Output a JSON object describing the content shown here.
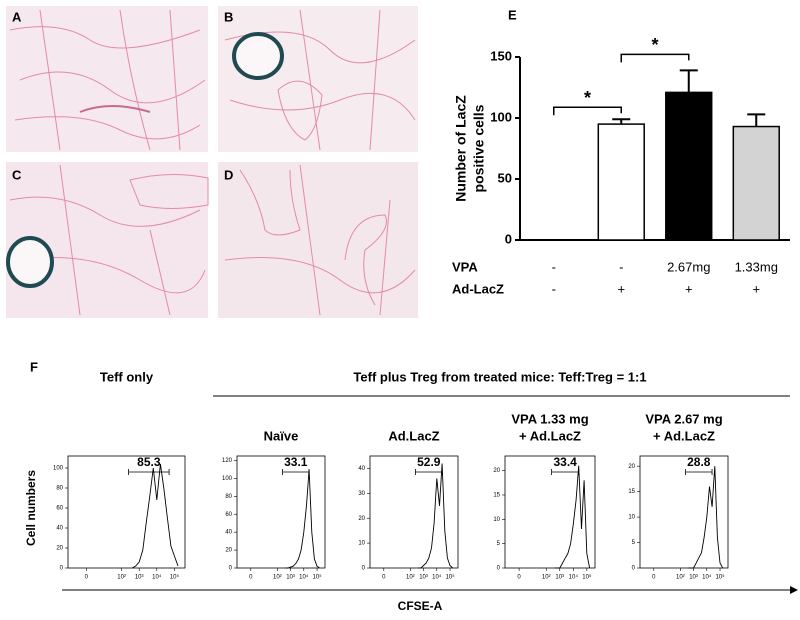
{
  "image_panels": [
    {
      "label": "A"
    },
    {
      "label": "B"
    },
    {
      "label": "C"
    },
    {
      "label": "D"
    }
  ],
  "panel_f": {
    "label": "F",
    "group_title": "Teff plus Treg from treated mice:  Teff:Treg = 1:1",
    "y_label": "Cell numbers",
    "x_label": "CFSE-A"
  },
  "chart_data": [
    {
      "type": "bar",
      "label": "E",
      "y_label": [
        "Number of LacZ",
        "positive cells"
      ],
      "categories": [
        null,
        null,
        null,
        null
      ],
      "values": [
        null,
        95,
        121,
        93
      ],
      "errors": [
        null,
        4,
        18,
        10
      ],
      "colors": [
        "#ffffff",
        "#ffffff",
        "#000000",
        "#d3d3d3"
      ],
      "ylim": [
        0,
        150
      ],
      "yticks": [
        0,
        50,
        100,
        150
      ],
      "condition_rows": [
        {
          "name": "VPA",
          "labels": [
            "-",
            "-",
            "2.67mg",
            "1.33mg"
          ]
        },
        {
          "name": "Ad-LacZ",
          "labels": [
            "-",
            "+",
            "+",
            "+"
          ]
        }
      ],
      "annotations": [
        {
          "text": "*",
          "between": [
            0,
            1
          ]
        },
        {
          "text": "*",
          "between": [
            1,
            2
          ]
        }
      ]
    },
    {
      "type": "histogram-line",
      "title": [
        "Teff only"
      ],
      "x": [
        400,
        630,
        1000,
        1600,
        2500,
        4000,
        6300,
        10000,
        16000,
        25000,
        40000,
        63000,
        100000,
        160000
      ],
      "values": [
        0,
        2,
        6,
        18,
        45,
        72,
        100,
        68,
        104,
        80,
        50,
        22,
        12,
        2
      ],
      "xscale": "symlog",
      "xlim": [
        -10,
        400000
      ],
      "xticks": [
        0,
        {
          "value": 100,
          "label": "10²"
        },
        {
          "value": 1000,
          "label": "10³"
        },
        {
          "value": 10000,
          "label": "10⁴"
        },
        {
          "value": 100000,
          "label": "10⁵"
        }
      ],
      "ylim": [
        0,
        112
      ],
      "yticks": [
        0,
        20,
        40,
        60,
        80,
        100
      ],
      "gate": {
        "range": [
          250,
          50000
        ],
        "value": 85.3
      }
    },
    {
      "type": "histogram-line",
      "title": [
        "Naïve"
      ],
      "x": [
        400,
        630,
        1000,
        1600,
        2500,
        4000,
        6300,
        10000,
        16000,
        25000,
        40000,
        63000,
        100000,
        160000
      ],
      "values": [
        0,
        0,
        1,
        2,
        5,
        10,
        20,
        40,
        70,
        110,
        40,
        10,
        2,
        0
      ],
      "xscale": "symlog",
      "xlim": [
        -10,
        400000
      ],
      "xticks": [
        0,
        {
          "value": 100,
          "label": "10²"
        },
        {
          "value": 1000,
          "label": "10³"
        },
        {
          "value": 10000,
          "label": "10⁴"
        },
        {
          "value": 100000,
          "label": "10⁵"
        }
      ],
      "ylim": [
        0,
        125
      ],
      "yticks": [
        0,
        20,
        40,
        60,
        80,
        100,
        120
      ],
      "gate": {
        "range": [
          250,
          25000
        ],
        "value": 33.1
      }
    },
    {
      "type": "histogram-line",
      "title": [
        "Ad.LacZ"
      ],
      "x": [
        400,
        630,
        1000,
        1600,
        2500,
        4000,
        6300,
        10000,
        16000,
        25000,
        40000,
        63000,
        100000,
        160000
      ],
      "values": [
        0,
        0,
        1,
        2,
        4,
        8,
        18,
        36,
        25,
        42,
        15,
        4,
        1,
        0
      ],
      "xscale": "symlog",
      "xlim": [
        -10,
        400000
      ],
      "xticks": [
        0,
        {
          "value": 100,
          "label": "10²"
        },
        {
          "value": 1000,
          "label": "10³"
        },
        {
          "value": 10000,
          "label": "10⁴"
        },
        {
          "value": 100000,
          "label": "10⁵"
        }
      ],
      "ylim": [
        0,
        45
      ],
      "yticks": [
        0,
        10,
        20,
        30,
        40
      ],
      "gate": {
        "range": [
          250,
          25000
        ],
        "value": 52.9
      }
    },
    {
      "type": "histogram-line",
      "title": [
        "VPA 1.33 mg",
        "+ Ad.LacZ"
      ],
      "x": [
        400,
        630,
        1000,
        1600,
        2500,
        4000,
        6300,
        10000,
        16000,
        25000,
        40000,
        63000,
        100000,
        160000
      ],
      "values": [
        0,
        0,
        0,
        1,
        2,
        3,
        5,
        9,
        14,
        21,
        8,
        18,
        3,
        0
      ],
      "xscale": "symlog",
      "xlim": [
        -10,
        400000
      ],
      "xticks": [
        0,
        {
          "value": 100,
          "label": "10²"
        },
        {
          "value": 1000,
          "label": "10³"
        },
        {
          "value": 10000,
          "label": "10⁴"
        },
        {
          "value": 100000,
          "label": "10⁵"
        }
      ],
      "ylim": [
        0,
        23
      ],
      "yticks": [
        0,
        5,
        10,
        15,
        20
      ],
      "gate": {
        "range": [
          250,
          25000
        ],
        "value": 33.4
      }
    },
    {
      "type": "histogram-line",
      "title": [
        "VPA 2.67 mg",
        "+ Ad.LacZ"
      ],
      "x": [
        400,
        630,
        1000,
        1600,
        2500,
        4000,
        6300,
        10000,
        16000,
        25000,
        40000,
        63000,
        100000,
        160000
      ],
      "values": [
        0,
        0,
        0,
        1,
        2,
        3,
        6,
        10,
        16,
        12,
        20,
        6,
        1,
        0
      ],
      "xscale": "symlog",
      "xlim": [
        -10,
        400000
      ],
      "xticks": [
        0,
        {
          "value": 100,
          "label": "10²"
        },
        {
          "value": 1000,
          "label": "10³"
        },
        {
          "value": 10000,
          "label": "10⁴"
        },
        {
          "value": 100000,
          "label": "10⁵"
        }
      ],
      "ylim": [
        0,
        22
      ],
      "yticks": [
        0,
        5,
        10,
        15,
        20
      ],
      "gate": {
        "range": [
          250,
          25000
        ],
        "value": 28.8
      }
    }
  ]
}
